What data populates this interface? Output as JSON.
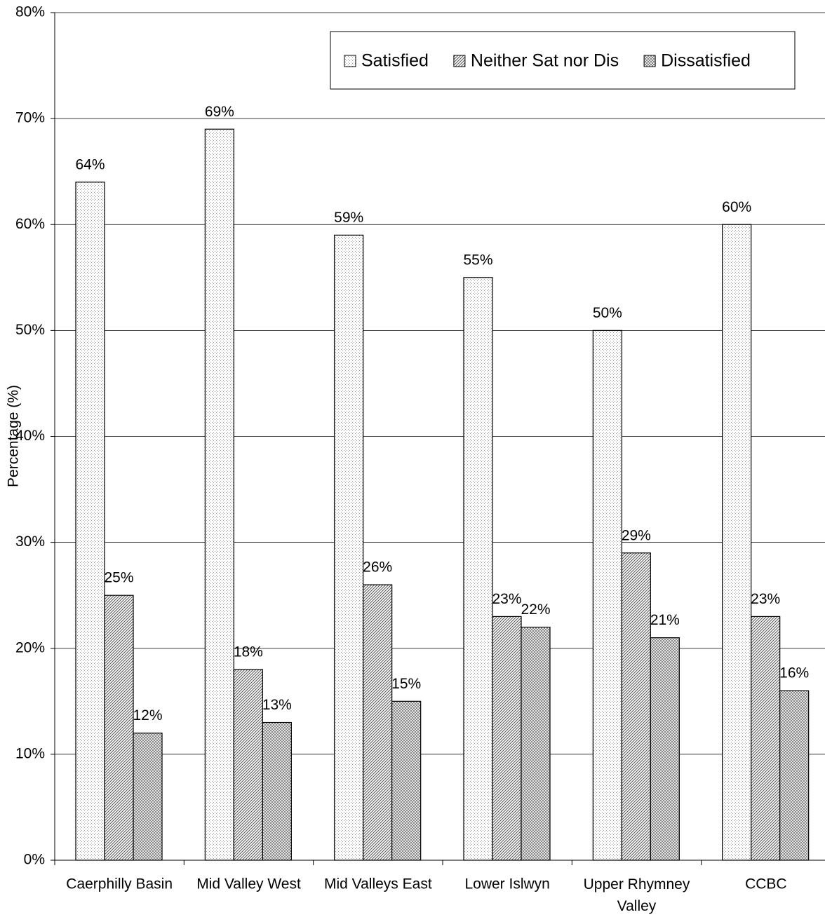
{
  "chart_data": {
    "type": "bar",
    "y_label": "Percentage (%)",
    "categories": [
      "Caerphilly Basin",
      "Mid Valley West",
      "Mid Valleys East",
      "Lower Islwyn",
      "Upper Rhymney Valley",
      "CCBC"
    ],
    "series": [
      {
        "name": "Satisfied",
        "color": "#9a9a9a",
        "pattern": "dots",
        "values": [
          64,
          69,
          59,
          55,
          50,
          60
        ],
        "value_labels": [
          "64%",
          "69%",
          "59%",
          "55%",
          "50%",
          "60%"
        ]
      },
      {
        "name": "Neither Sat nor Dis",
        "color": "#555555",
        "pattern": "diagonal",
        "values": [
          25,
          18,
          26,
          23,
          29,
          23
        ],
        "value_labels": [
          "25%",
          "18%",
          "26%",
          "23%",
          "29%",
          "23%"
        ]
      },
      {
        "name": "Dissatisfied",
        "color": "#777777",
        "pattern": "crosshatch",
        "values": [
          12,
          13,
          15,
          22,
          21,
          16
        ],
        "value_labels": [
          "12%",
          "13%",
          "15%",
          "22%",
          "21%",
          "16%"
        ]
      }
    ],
    "ylim": [
      0,
      80
    ],
    "yticks": [
      {
        "value": 0,
        "label": "0%"
      },
      {
        "value": 10,
        "label": "10%"
      },
      {
        "value": 20,
        "label": "20%"
      },
      {
        "value": 30,
        "label": "30%"
      },
      {
        "value": 40,
        "label": "40%"
      },
      {
        "value": 50,
        "label": "50%"
      },
      {
        "value": 60,
        "label": "60%"
      },
      {
        "value": 70,
        "label": "70%"
      },
      {
        "value": 80,
        "label": "80%"
      }
    ],
    "grid": true,
    "legend": "top-right"
  }
}
